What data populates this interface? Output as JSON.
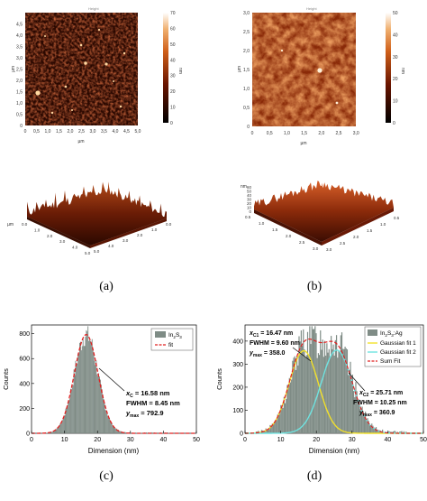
{
  "panels": {
    "a": {
      "label": "(a)",
      "afm2d": {
        "axis_unit": "µm",
        "x_ticks": [
          "0",
          "0,5",
          "1,0",
          "1,5",
          "2,0",
          "2,5",
          "3,0",
          "3,5",
          "4,0",
          "4,5",
          "5,0"
        ],
        "y_ticks": [
          "0",
          "0,5",
          "1,0",
          "1,5",
          "2,0",
          "2,5",
          "3,0",
          "3,5",
          "4,0",
          "4,5"
        ],
        "colorbar_unit": "nm",
        "colorbar_ticks": [
          "0",
          "10",
          "20",
          "30",
          "40",
          "50",
          "60",
          "70"
        ]
      },
      "afm3d": {
        "axis_unit": "µm",
        "ticks": [
          "0.0",
          "1.0",
          "2.0",
          "3.0",
          "4.0",
          "5.0"
        ]
      }
    },
    "b": {
      "label": "(b)",
      "afm2d": {
        "axis_unit": "µm",
        "x_ticks": [
          "0",
          "0,5",
          "1,0",
          "1,5",
          "2,0",
          "2,5",
          "3,0"
        ],
        "y_ticks": [
          "0",
          "0,5",
          "1,0",
          "1,5",
          "2,0",
          "2,5",
          "3,0"
        ],
        "colorbar_unit": "nm",
        "colorbar_ticks": [
          "0",
          "10",
          "20",
          "30",
          "40",
          "50"
        ]
      },
      "afm3d": {
        "z_unit": "nm",
        "z_ticks": [
          "0",
          "10",
          "20",
          "30",
          "40",
          "50",
          "60"
        ],
        "ticks": [
          "0.5",
          "1.0",
          "1.5",
          "2.0",
          "2.5",
          "3.0"
        ]
      }
    },
    "c": {
      "label": "(c)"
    },
    "d": {
      "label": "(d)"
    }
  },
  "chart_data": [
    {
      "type": "bar",
      "panel": "c",
      "xlabel": "Dimension (nm)",
      "ylabel": "Counts",
      "xlim": [
        0,
        50
      ],
      "ylim": [
        0,
        870
      ],
      "xticks": [
        0,
        10,
        20,
        30,
        40,
        50
      ],
      "yticks": [
        0,
        200,
        400,
        600,
        800
      ],
      "legend": {
        "position": "top-right",
        "entries": [
          {
            "label": "In",
            "sub": "2",
            "tail": "S",
            "sub2": "3"
          },
          {
            "label": "fit"
          }
        ]
      },
      "series": [
        {
          "name": "In2S3",
          "kind": "histogram",
          "color": "#7f8c86",
          "x": [
            8,
            9,
            10,
            11,
            12,
            13,
            14,
            15,
            16,
            16.58,
            17,
            18,
            19,
            20,
            21,
            22,
            23,
            24,
            25,
            26,
            27,
            28
          ],
          "y": [
            15,
            30,
            60,
            120,
            230,
            390,
            550,
            690,
            770,
            792.9,
            780,
            720,
            600,
            440,
            290,
            160,
            80,
            40,
            20,
            10,
            6,
            3
          ]
        },
        {
          "name": "fit",
          "kind": "gaussian",
          "xc": 16.58,
          "fwhm": 8.45,
          "ymax": 792.9,
          "color": "#e02020"
        }
      ],
      "annotation": {
        "xc": "16.58 nm",
        "fwhm": "8.45 nm",
        "ymax": "792.9"
      }
    },
    {
      "type": "bar",
      "panel": "d",
      "xlabel": "Dimension (nm)",
      "ylabel": "Counts",
      "xlim": [
        0,
        50
      ],
      "ylim": [
        0,
        470
      ],
      "xticks": [
        0,
        10,
        20,
        30,
        40,
        50
      ],
      "yticks": [
        0,
        100,
        200,
        300,
        400
      ],
      "legend": {
        "position": "top-right",
        "entries": [
          {
            "label": "In",
            "sub": "2",
            "tail": "S",
            "sub2": "3",
            "tail2": ":Ag"
          },
          {
            "label": "Gaussian fit 1"
          },
          {
            "label": "Gaussian fit 2"
          },
          {
            "label": "Sum Fit"
          }
        ]
      },
      "series": [
        {
          "name": "In2S3:Ag",
          "kind": "histogram",
          "color": "#7f8c86"
        },
        {
          "name": "Gaussian fit 1",
          "kind": "gaussian",
          "xc": 16.47,
          "fwhm": 9.6,
          "ymax": 358.0,
          "color": "#f2e02a"
        },
        {
          "name": "Gaussian fit 2",
          "kind": "gaussian",
          "xc": 25.71,
          "fwhm": 10.25,
          "ymax": 360.9,
          "color": "#6fe3e0"
        },
        {
          "name": "Sum Fit",
          "kind": "sum",
          "color": "#e02020"
        }
      ],
      "annotations": [
        {
          "xc": "16.47 nm",
          "fwhm": "9.60 nm",
          "ymax": "358.0",
          "idx": "C1"
        },
        {
          "xc": "25.71 nm",
          "fwhm": "10.25 nm",
          "ymax": "360.9",
          "idx": "C2"
        }
      ]
    }
  ],
  "colors": {
    "bars": "#7f8c86",
    "fit_red": "#e02020",
    "fit_yellow": "#f2e02a",
    "fit_cyan": "#6fe3e0",
    "afm_dark": "#1a0500",
    "afm_light": "#f7e0c0"
  }
}
